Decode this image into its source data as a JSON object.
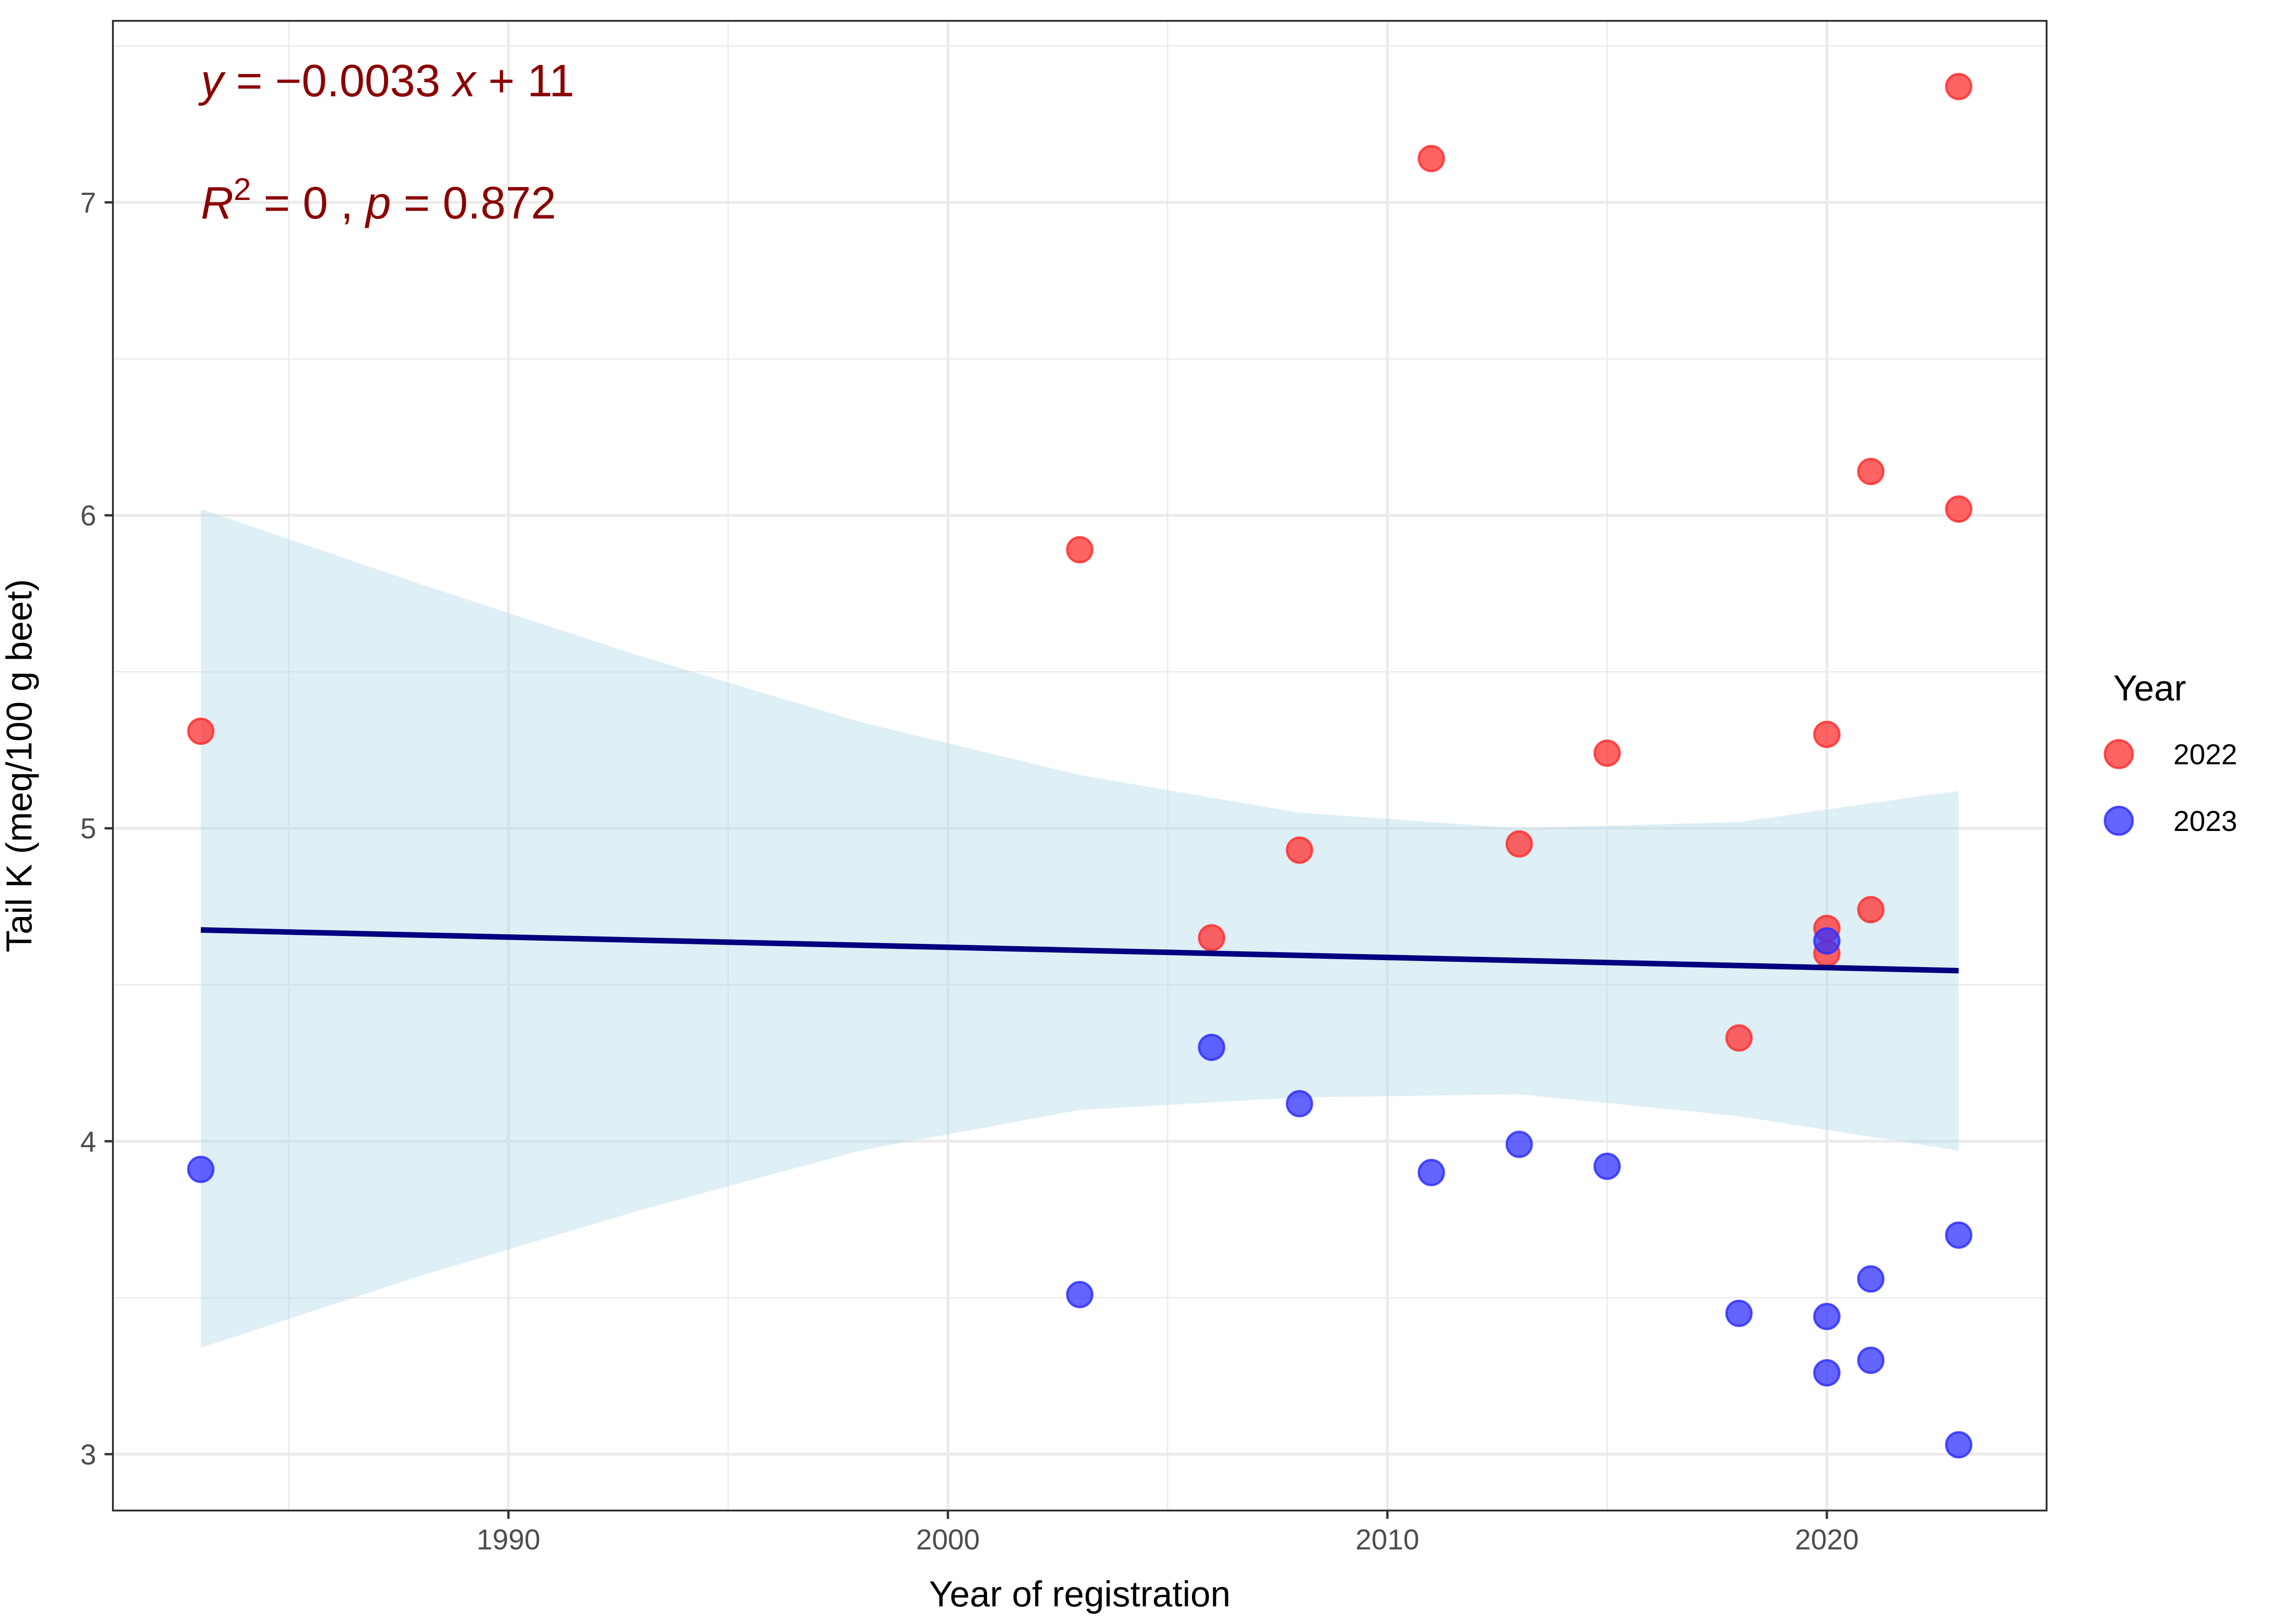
{
  "chart_data": {
    "type": "scatter",
    "title": "",
    "xlabel": "Year of registration",
    "ylabel": "Tail K (meq/100 g beet)",
    "xlim": [
      1981.0,
      2025.0
    ],
    "ylim": [
      2.82,
      7.58
    ],
    "x_ticks": [
      1990,
      2000,
      2010,
      2020
    ],
    "x_tick_labels": [
      "1990",
      "2000",
      "2010",
      "2020"
    ],
    "x_minor_ticks": [
      1985,
      1995,
      2005,
      2015
    ],
    "y_ticks": [
      3,
      4,
      5,
      6,
      7
    ],
    "y_tick_labels": [
      "3",
      "4",
      "5",
      "6",
      "7"
    ],
    "y_minor_ticks": [
      3.5,
      4.5,
      5.5,
      6.5,
      7.5
    ],
    "grid": true,
    "legend": {
      "title": "Year",
      "placement": "right",
      "entries": [
        {
          "label": "2022",
          "color": "#FF3030"
        },
        {
          "label": "2023",
          "color": "#3030FF"
        }
      ]
    },
    "series": [
      {
        "name": "2022",
        "color": "#FF3030",
        "points": [
          {
            "x": 1983,
            "y": 5.31
          },
          {
            "x": 2003,
            "y": 5.89
          },
          {
            "x": 2006,
            "y": 4.65
          },
          {
            "x": 2008,
            "y": 4.93
          },
          {
            "x": 2011,
            "y": 7.14
          },
          {
            "x": 2013,
            "y": 4.95
          },
          {
            "x": 2015,
            "y": 5.24
          },
          {
            "x": 2018,
            "y": 4.33
          },
          {
            "x": 2020,
            "y": 5.3
          },
          {
            "x": 2020,
            "y": 4.68
          },
          {
            "x": 2020,
            "y": 4.6
          },
          {
            "x": 2021,
            "y": 6.14
          },
          {
            "x": 2021,
            "y": 4.74
          },
          {
            "x": 2023,
            "y": 7.37
          },
          {
            "x": 2023,
            "y": 6.02
          }
        ]
      },
      {
        "name": "2023",
        "color": "#3030FF",
        "points": [
          {
            "x": 1983,
            "y": 3.91
          },
          {
            "x": 2003,
            "y": 3.51
          },
          {
            "x": 2006,
            "y": 4.3
          },
          {
            "x": 2008,
            "y": 4.12
          },
          {
            "x": 2011,
            "y": 3.9
          },
          {
            "x": 2013,
            "y": 3.99
          },
          {
            "x": 2015,
            "y": 3.92
          },
          {
            "x": 2018,
            "y": 3.45
          },
          {
            "x": 2020,
            "y": 4.64
          },
          {
            "x": 2020,
            "y": 3.44
          },
          {
            "x": 2020,
            "y": 3.26
          },
          {
            "x": 2021,
            "y": 3.56
          },
          {
            "x": 2021,
            "y": 3.3
          },
          {
            "x": 2023,
            "y": 3.7
          },
          {
            "x": 2023,
            "y": 3.03
          }
        ]
      }
    ],
    "regression": {
      "line_color": "#000080",
      "ci_color": "#ADD8E6",
      "x": [
        1983,
        2023
      ],
      "fit": [
        4.675,
        4.545
      ],
      "ci_band": {
        "x": [
          1983,
          1988,
          1993,
          1998,
          2003,
          2008,
          2013,
          2018,
          2023
        ],
        "upper": [
          6.02,
          5.78,
          5.55,
          5.34,
          5.17,
          5.05,
          5.0,
          5.02,
          5.12
        ],
        "lower": [
          3.34,
          3.57,
          3.78,
          3.97,
          4.1,
          4.14,
          4.15,
          4.08,
          3.97
        ]
      }
    },
    "annotations": {
      "equation": {
        "y_label": "y",
        "equals": " = ",
        "minus": "−",
        "slope": "0.0033",
        "x_label": "x",
        "plus": " + ",
        "intercept": "11"
      },
      "stats": {
        "r_label": "R",
        "r_sup": "2",
        "r_value": " = 0 , ",
        "p_label": "p",
        "p_value": " = 0.872"
      },
      "color": "#8B0000"
    }
  }
}
